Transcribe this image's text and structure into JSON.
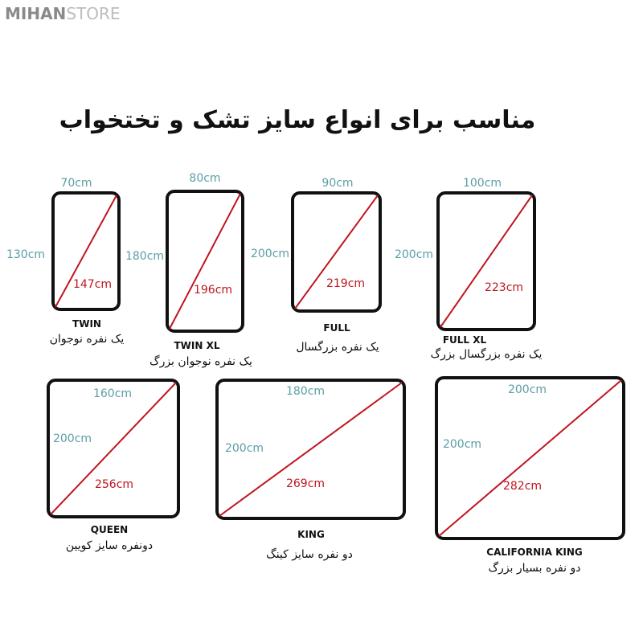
{
  "watermark": {
    "part1": "MIHAN",
    "part2": "STORE"
  },
  "title": "مناسب برای انواع سایز تشک و تختخواب",
  "colors": {
    "dimension": "#5b9ea6",
    "diagonal": "#c0151f",
    "outline": "#111111"
  },
  "sizes": [
    {
      "name": "TWIN",
      "persian": "یک نفره نوجوان",
      "width": "70cm",
      "length": "130cm",
      "diagonal": "147cm"
    },
    {
      "name": "TWIN XL",
      "persian": "یک نفره نوجوان بزرگ",
      "width": "80cm",
      "length": "180cm",
      "diagonal": "196cm"
    },
    {
      "name": "FULL",
      "persian": "یک نفره بزرگسال",
      "width": "90cm",
      "length": "200cm",
      "diagonal": "219cm"
    },
    {
      "name": "FULL XL",
      "persian": "یک نفره بزرگسال بزرگ",
      "width": "100cm",
      "length": "200cm",
      "diagonal": "223cm"
    },
    {
      "name": "QUEEN",
      "persian": "دونفره سایز کویین",
      "width": "160cm",
      "length": "200cm",
      "diagonal": "256cm"
    },
    {
      "name": "KING",
      "persian": "دو نفره سایز کینگ",
      "width": "180cm",
      "length": "200cm",
      "diagonal": "269cm"
    },
    {
      "name": "CALIFORNIA KING",
      "persian": "دو نفره بسیار بزرگ",
      "width": "200cm",
      "length": "200cm",
      "diagonal": "282cm"
    }
  ]
}
